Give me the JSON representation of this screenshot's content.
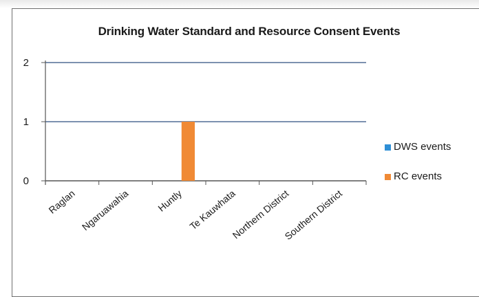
{
  "chart_data": {
    "type": "bar",
    "title": "Drinking Water Standard and Resource Consent Events",
    "categories": [
      "Raglan",
      "Ngaruawahia",
      "Huntly",
      "Te Kauwhata",
      "Northern District",
      "Southern District"
    ],
    "series": [
      {
        "name": "DWS events",
        "values": [
          0,
          0,
          0,
          0,
          0,
          0
        ],
        "color": "#2e8fd6"
      },
      {
        "name": "RC events",
        "values": [
          0,
          0,
          1,
          0,
          0,
          0
        ],
        "color": "#f08a35"
      }
    ],
    "yticks": [
      "0",
      "1",
      "2"
    ],
    "ylim": [
      0,
      2
    ],
    "grid": true,
    "legend": "right",
    "xlabel": "",
    "ylabel": ""
  }
}
